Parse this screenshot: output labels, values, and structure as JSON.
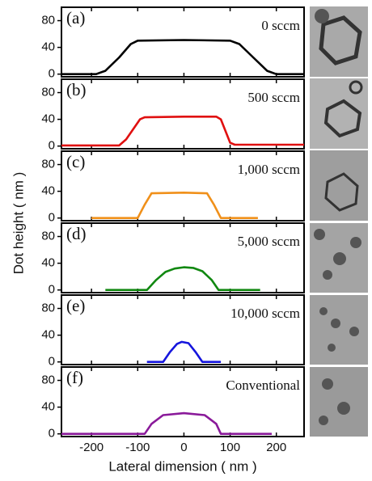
{
  "chart_data": [
    {
      "type": "line",
      "panel_label": "(a)",
      "annotation": "0 sccm",
      "ylabel": "Dot height ( nm )",
      "ylim": [
        -4,
        100
      ],
      "yticks": [
        0,
        40,
        80
      ],
      "series": [
        {
          "color": "#000000",
          "x": [
            -265,
            -190,
            -170,
            -140,
            -115,
            -100,
            0,
            100,
            120,
            150,
            180,
            200,
            260
          ],
          "values": [
            0,
            0,
            5,
            25,
            45,
            50,
            51,
            50,
            45,
            25,
            5,
            0,
            0
          ]
        }
      ]
    },
    {
      "type": "line",
      "panel_label": "(b)",
      "annotation": "500 sccm",
      "ylim": [
        -4,
        100
      ],
      "yticks": [
        0,
        40,
        80
      ],
      "series": [
        {
          "color": "#e01010",
          "x": [
            -265,
            -140,
            -125,
            -95,
            -85,
            0,
            70,
            80,
            100,
            110,
            260
          ],
          "values": [
            1,
            1,
            10,
            40,
            43,
            44,
            44,
            40,
            5,
            2,
            2
          ]
        }
      ]
    },
    {
      "type": "line",
      "panel_label": "(c)",
      "annotation": "1,000 sccm",
      "ylim": [
        -4,
        100
      ],
      "yticks": [
        0,
        40,
        80
      ],
      "series": [
        {
          "color": "#f0901a",
          "x": [
            -200,
            -100,
            -85,
            -70,
            0,
            50,
            65,
            80,
            160
          ],
          "values": [
            0,
            0,
            20,
            37,
            38,
            37,
            20,
            0,
            0
          ]
        }
      ]
    },
    {
      "type": "line",
      "panel_label": "(d)",
      "annotation": "5,000 sccm",
      "ylim": [
        -4,
        100
      ],
      "yticks": [
        0,
        40,
        80
      ],
      "series": [
        {
          "color": "#118811",
          "x": [
            -170,
            -80,
            -60,
            -40,
            -20,
            0,
            20,
            40,
            60,
            75,
            165
          ],
          "values": [
            0,
            0,
            15,
            27,
            32,
            34,
            33,
            28,
            15,
            0,
            0
          ]
        }
      ]
    },
    {
      "type": "line",
      "panel_label": "(e)",
      "annotation": "10,000 sccm",
      "ylim": [
        -4,
        100
      ],
      "yticks": [
        0,
        40,
        80
      ],
      "series": [
        {
          "color": "#1515dd",
          "x": [
            -80,
            -45,
            -30,
            -15,
            -5,
            10,
            25,
            40,
            80
          ],
          "values": [
            0,
            0,
            15,
            27,
            30,
            28,
            15,
            0,
            0
          ]
        }
      ]
    },
    {
      "type": "line",
      "panel_label": "(f)",
      "annotation": "Conventional",
      "xlabel": "Lateral dimension ( nm )",
      "ylim": [
        -4,
        100
      ],
      "yticks": [
        0,
        40,
        80
      ],
      "xlim": [
        -265,
        260
      ],
      "xticks": [
        -200,
        -100,
        0,
        100,
        200
      ],
      "series": [
        {
          "color": "#8a1a9a",
          "x": [
            -265,
            -85,
            -70,
            -45,
            0,
            45,
            70,
            80,
            190
          ],
          "values": [
            0,
            0,
            15,
            28,
            31,
            28,
            15,
            0,
            0
          ]
        }
      ]
    }
  ]
}
